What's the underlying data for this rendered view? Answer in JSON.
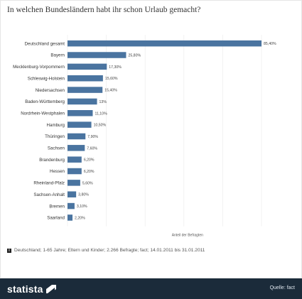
{
  "title": "In welchen Bundesländern habt ihr schon Urlaub gemacht?",
  "footnote": "Deutschland; 1-65 Jahre; Eltern und Kinder; 2.266 Befragte; fact; 14.01.2011 bis 31.01.2011",
  "footer": {
    "logo": "statista",
    "source": "Quelle: fact"
  },
  "colors": {
    "bar": "#4a74a0",
    "footer_bg": "#1b2b3a"
  },
  "icons": {
    "info": "info-icon",
    "logo_mark": "statista-logo-icon"
  },
  "chart_data": {
    "type": "bar",
    "orientation": "horizontal",
    "xlabel": "Anteil der Befragten",
    "xlim": [
      0,
      85.4
    ],
    "grid": true,
    "categories": [
      "Deutschland gesamt",
      "Bayern",
      "Mecklenburg-Vorpommern",
      "Schleswig-Holstein",
      "Niedersachsen",
      "Baden-Württemberg",
      "Nordrhein-Westphalen",
      "Hamburg",
      "Thüringen",
      "Sachsen",
      "Brandenburg",
      "Hessen",
      "Rheinland-Pfalz",
      "Sachsen-Anhalt",
      "Bremen",
      "Saarland"
    ],
    "values": [
      85.4,
      25.8,
      17.3,
      15.6,
      15.4,
      13,
      11.1,
      10.5,
      7.9,
      7.6,
      6.2,
      6.2,
      5.6,
      3.8,
      3.1,
      2.2
    ],
    "value_labels": [
      "85,40%",
      "25,80%",
      "17,30%",
      "15,60%",
      "15,40%",
      "13%",
      "11,10%",
      "10,50%",
      "7,90%",
      "7,60%",
      "6,20%",
      "6,20%",
      "5,60%",
      "3,80%",
      "3,10%",
      "2,20%"
    ]
  }
}
